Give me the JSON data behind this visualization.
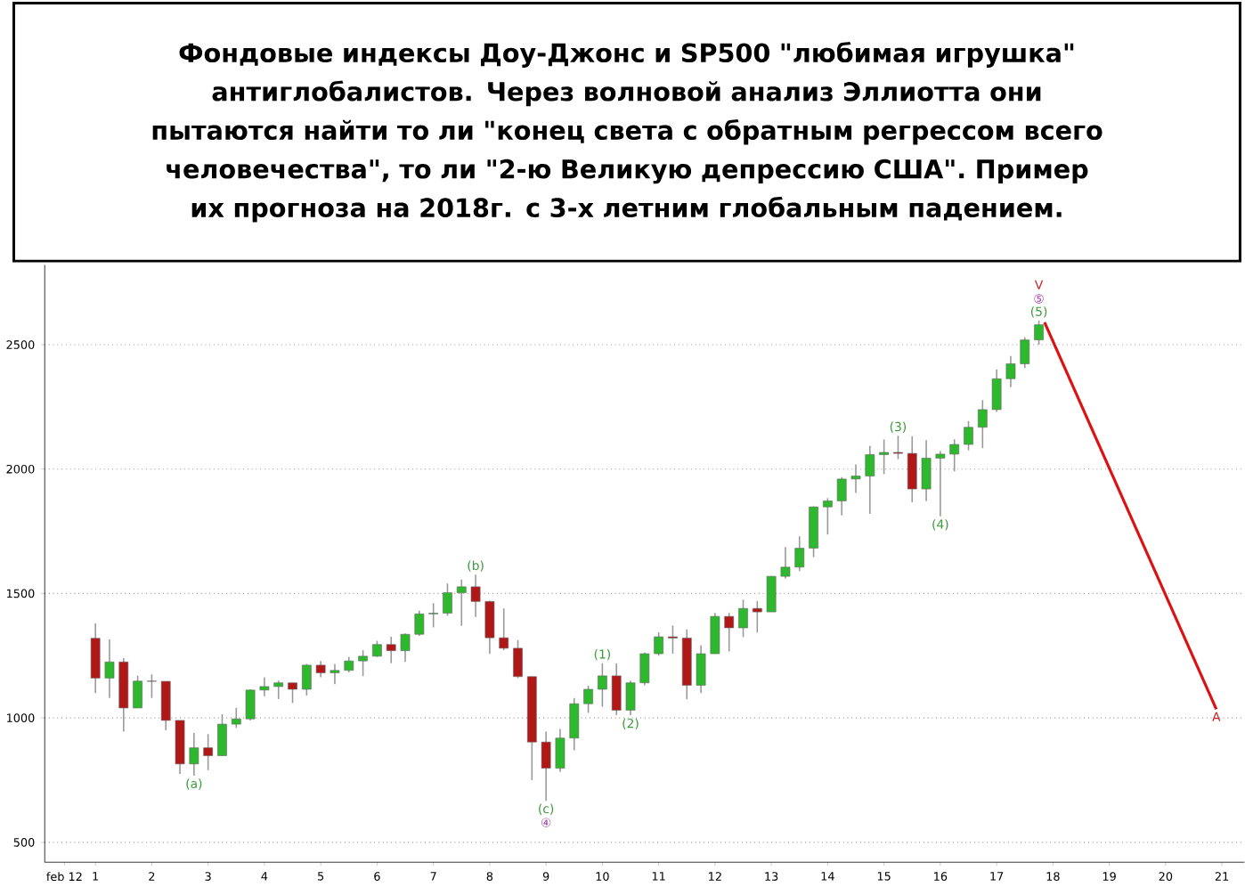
{
  "chart_data": {
    "type": "candlestick",
    "title": "Фондовые индексы Доу-Джонс и SP500 \"любимая игрушка\" антиглобалистов. Через волновой анализ Эллиотта они пытаются найти то ли \"конец света с обратным регрессом всего человечества\", то ли \"2-ю Великую депрессию США\". Пример их прогноза на 2018г. с 3-х летним глобальным падением.",
    "x": [
      1.0,
      1.25,
      1.5,
      1.75,
      2.0,
      2.25,
      2.5,
      2.75,
      3.0,
      3.25,
      3.5,
      3.75,
      4.0,
      4.25,
      4.5,
      4.75,
      5.0,
      5.25,
      5.5,
      5.75,
      6.0,
      6.25,
      6.5,
      6.75,
      7.0,
      7.25,
      7.5,
      7.75,
      8.0,
      8.25,
      8.5,
      8.75,
      9.0,
      9.25,
      9.5,
      9.75,
      10.0,
      10.25,
      10.5,
      10.75,
      11.0,
      11.25,
      11.5,
      11.75,
      12.0,
      12.25,
      12.5,
      12.75,
      13.0,
      13.25,
      13.5,
      13.75,
      14.0,
      14.25,
      14.5,
      14.75,
      15.0,
      15.25,
      15.5,
      15.75,
      16.0,
      16.25,
      16.5,
      16.75,
      17.0,
      17.25,
      17.5,
      17.75
    ],
    "ohlc": [
      [
        1320,
        1380,
        1100,
        1160
      ],
      [
        1160,
        1315,
        1080,
        1225
      ],
      [
        1225,
        1240,
        945,
        1040
      ],
      [
        1040,
        1170,
        1040,
        1148
      ],
      [
        1148,
        1175,
        1080,
        1147
      ],
      [
        1147,
        1147,
        950,
        990
      ],
      [
        990,
        990,
        775,
        815
      ],
      [
        815,
        940,
        768,
        880
      ],
      [
        880,
        935,
        790,
        848
      ],
      [
        848,
        1015,
        848,
        975
      ],
      [
        975,
        1040,
        960,
        996
      ],
      [
        996,
        1115,
        990,
        1112
      ],
      [
        1112,
        1163,
        1087,
        1126
      ],
      [
        1126,
        1150,
        1076,
        1141
      ],
      [
        1141,
        1141,
        1060,
        1115
      ],
      [
        1115,
        1217,
        1090,
        1212
      ],
      [
        1212,
        1229,
        1163,
        1181
      ],
      [
        1181,
        1217,
        1136,
        1191
      ],
      [
        1191,
        1245,
        1183,
        1229
      ],
      [
        1229,
        1272,
        1168,
        1248
      ],
      [
        1248,
        1310,
        1245,
        1295
      ],
      [
        1295,
        1326,
        1220,
        1270
      ],
      [
        1270,
        1340,
        1225,
        1336
      ],
      [
        1336,
        1431,
        1330,
        1418
      ],
      [
        1418,
        1461,
        1364,
        1421
      ],
      [
        1421,
        1540,
        1410,
        1503
      ],
      [
        1503,
        1556,
        1370,
        1527
      ],
      [
        1527,
        1576,
        1406,
        1468
      ],
      [
        1468,
        1471,
        1257,
        1322
      ],
      [
        1322,
        1440,
        1272,
        1280
      ],
      [
        1280,
        1313,
        1160,
        1166
      ],
      [
        1166,
        1167,
        750,
        903
      ],
      [
        903,
        945,
        667,
        798
      ],
      [
        798,
        956,
        783,
        919
      ],
      [
        919,
        1080,
        870,
        1057
      ],
      [
        1057,
        1130,
        1020,
        1115
      ],
      [
        1115,
        1220,
        1045,
        1169
      ],
      [
        1169,
        1219,
        1011,
        1031
      ],
      [
        1031,
        1150,
        1010,
        1141
      ],
      [
        1141,
        1263,
        1131,
        1258
      ],
      [
        1258,
        1344,
        1250,
        1326
      ],
      [
        1326,
        1371,
        1258,
        1321
      ],
      [
        1321,
        1356,
        1075,
        1131
      ],
      [
        1131,
        1292,
        1100,
        1258
      ],
      [
        1258,
        1422,
        1258,
        1408
      ],
      [
        1408,
        1422,
        1267,
        1362
      ],
      [
        1362,
        1475,
        1325,
        1440
      ],
      [
        1440,
        1470,
        1343,
        1426
      ],
      [
        1426,
        1570,
        1426,
        1569
      ],
      [
        1569,
        1687,
        1560,
        1606
      ],
      [
        1606,
        1730,
        1590,
        1682
      ],
      [
        1682,
        1850,
        1646,
        1848
      ],
      [
        1848,
        1883,
        1737,
        1872
      ],
      [
        1872,
        1968,
        1814,
        1960
      ],
      [
        1960,
        2019,
        1904,
        1972
      ],
      [
        1972,
        2093,
        1820,
        2058
      ],
      [
        2058,
        2119,
        1980,
        2067
      ],
      [
        2067,
        2134,
        2040,
        2063
      ],
      [
        2063,
        2132,
        1867,
        1920
      ],
      [
        1920,
        2116,
        1871,
        2044
      ],
      [
        2044,
        2072,
        1810,
        2060
      ],
      [
        2060,
        2120,
        1991,
        2099
      ],
      [
        2099,
        2193,
        2075,
        2168
      ],
      [
        2168,
        2277,
        2084,
        2239
      ],
      [
        2239,
        2401,
        2230,
        2363
      ],
      [
        2363,
        2454,
        2329,
        2423
      ],
      [
        2423,
        2530,
        2406,
        2519
      ],
      [
        2519,
        2597,
        2500,
        2580
      ]
    ],
    "series": [
      {
        "type": "line",
        "color": "#dd1111",
        "x": [
          17.85,
          20.9
        ],
        "values": [
          2590,
          1035
        ]
      }
    ],
    "xlim": [
      0.1,
      21.4
    ],
    "xticks": [
      {
        "value": 0.45,
        "label": "feb 12"
      },
      1,
      2,
      3,
      4,
      5,
      6,
      7,
      8,
      9,
      10,
      11,
      12,
      13,
      14,
      15,
      16,
      17,
      18,
      19,
      20,
      21
    ],
    "ylim": [
      420,
      2820
    ],
    "yticks": [
      500,
      1000,
      1500,
      2000,
      2500
    ],
    "grid": "y",
    "annotations": [
      {
        "text": "(a)",
        "x": 2.75,
        "y": 768
      },
      {
        "text": "(b)",
        "x": 7.75,
        "y": 1576
      },
      {
        "text": "(c)",
        "x": 9.0,
        "y": 667
      },
      {
        "text": "④",
        "x": 9.0,
        "y": 667
      },
      {
        "text": "(1)",
        "x": 10.0,
        "y": 1220
      },
      {
        "text": "(2)",
        "x": 10.5,
        "y": 1010
      },
      {
        "text": "(3)",
        "x": 15.25,
        "y": 2134
      },
      {
        "text": "(4)",
        "x": 16.0,
        "y": 1810
      },
      {
        "text": "(5)",
        "x": 17.75,
        "y": 2597
      },
      {
        "text": "⑤",
        "x": 17.75,
        "y": 2597
      },
      {
        "text": "V",
        "x": 17.75,
        "y": 2597
      },
      {
        "text": "A",
        "x": 20.9,
        "y": 1035
      }
    ]
  }
}
